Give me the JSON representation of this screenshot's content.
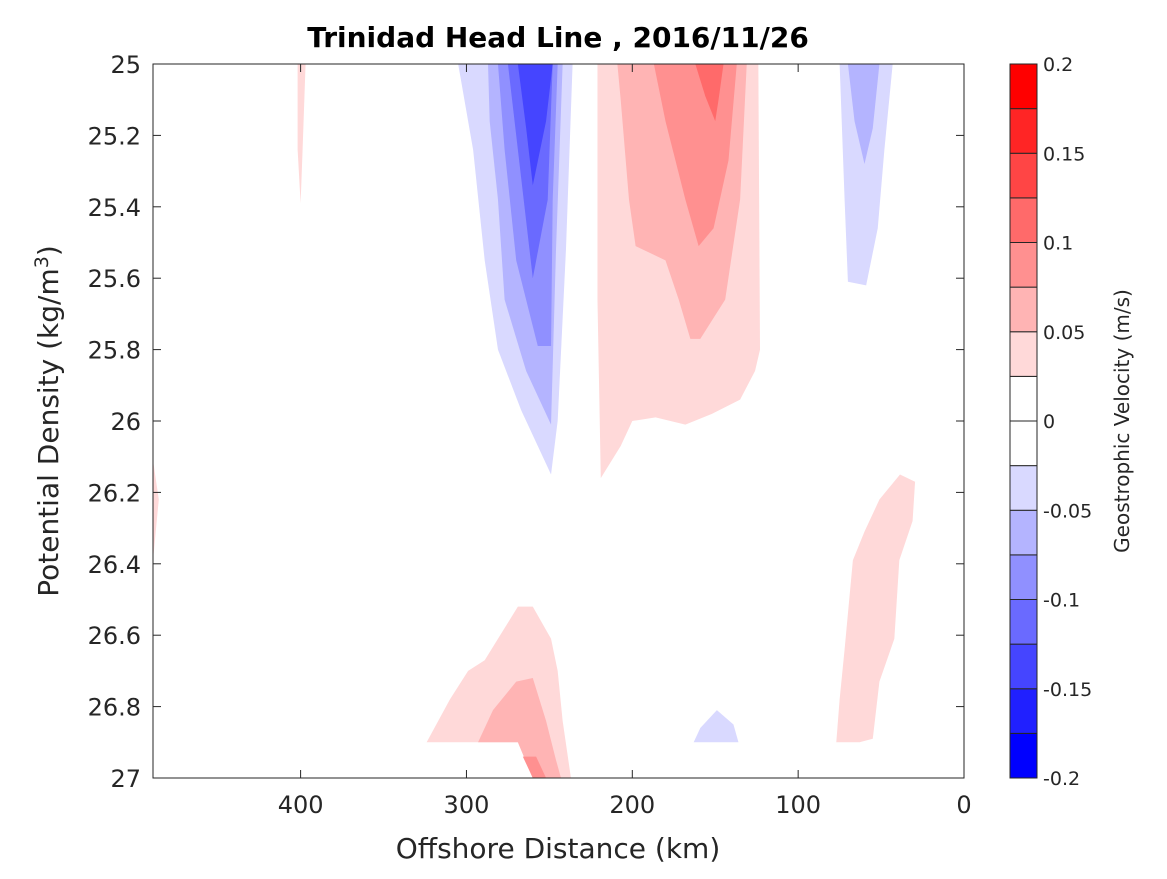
{
  "chart_data": {
    "type": "filled-contour",
    "title": "Trinidad Head Line , 2016/11/26",
    "xlabel": "Offshore Distance (km)",
    "ylabel": "Potential Density (kg/m",
    "ylabel_sup": "3",
    "ylabel_close": ")",
    "xlim": [
      489,
      0
    ],
    "ylim": [
      25,
      27
    ],
    "y_reversed": true,
    "x_reversed": true,
    "xticks": [
      400,
      300,
      200,
      100,
      0
    ],
    "yticks": [
      25,
      25.2,
      25.4,
      25.6,
      25.8,
      26,
      26.2,
      26.4,
      26.6,
      26.8,
      27
    ],
    "colorbar": {
      "label": "Geostrophic Velocity (m/s)",
      "range": [
        -0.2,
        0.2
      ],
      "levels": [
        -0.2,
        -0.175,
        -0.15,
        -0.125,
        -0.1,
        -0.075,
        -0.05,
        -0.025,
        0,
        0.025,
        0.05,
        0.075,
        0.1,
        0.125,
        0.15,
        0.175,
        0.2
      ],
      "colors": [
        "#0000ff",
        "#2020ff",
        "#4545ff",
        "#6a6aff",
        "#9090ff",
        "#b4b4ff",
        "#d9d9ff",
        "#ffffff",
        "#ffffff",
        "#ffd9d9",
        "#ffb4b4",
        "#ff9090",
        "#ff6a6a",
        "#ff4545",
        "#ff2525",
        "#ff0000"
      ],
      "ticks": [
        -0.2,
        -0.15,
        -0.1,
        -0.05,
        0,
        0.05,
        0.1,
        0.15,
        0.2
      ]
    },
    "regions": [
      {
        "level": -0.025,
        "points": [
          [
            324,
            25
          ],
          [
            233,
            25
          ],
          [
            234,
            25.38
          ],
          [
            239,
            26.17
          ],
          [
            242,
            26.25
          ],
          [
            249,
            26.32
          ],
          [
            269,
            26.19
          ],
          [
            289,
            26.18
          ],
          [
            298,
            25.94
          ],
          [
            307,
            25.66
          ],
          [
            319,
            25.49
          ]
        ]
      },
      {
        "level": -0.05,
        "points": [
          [
            305,
            25
          ],
          [
            236,
            25
          ],
          [
            240,
            25.52
          ],
          [
            245,
            26.0
          ],
          [
            249,
            26.15
          ],
          [
            267,
            25.97
          ],
          [
            281,
            25.8
          ],
          [
            289,
            25.55
          ],
          [
            296,
            25.24
          ]
        ]
      },
      {
        "level": -0.075,
        "points": [
          [
            287,
            25
          ],
          [
            242,
            25
          ],
          [
            246,
            25.52
          ],
          [
            249,
            26.01
          ],
          [
            264,
            25.86
          ],
          [
            277,
            25.66
          ],
          [
            281,
            25.38
          ],
          [
            286,
            25.16
          ]
        ]
      },
      {
        "level": -0.1,
        "points": [
          [
            281,
            25
          ],
          [
            245,
            25
          ],
          [
            248,
            25.38
          ],
          [
            249,
            25.79
          ],
          [
            257,
            25.79
          ],
          [
            270,
            25.55
          ],
          [
            277,
            25.24
          ]
        ]
      },
      {
        "level": -0.125,
        "points": [
          [
            275,
            25
          ],
          [
            248,
            25
          ],
          [
            251,
            25.38
          ],
          [
            260,
            25.6
          ],
          [
            267,
            25.32
          ]
        ]
      },
      {
        "level": -0.15,
        "points": [
          [
            269,
            25
          ],
          [
            248,
            25
          ],
          [
            252,
            25.16
          ],
          [
            260,
            25.34
          ],
          [
            264,
            25.18
          ]
        ]
      },
      {
        "level": -0.025,
        "points": [
          [
            435.5,
            25
          ],
          [
            427.7,
            25
          ],
          [
            428.3,
            25.38
          ],
          [
            429.5,
            25.55
          ],
          [
            433.7,
            25.44
          ],
          [
            436.1,
            25.3
          ]
        ]
      },
      {
        "level": 0.025,
        "points": [
          [
            401.8,
            25
          ],
          [
            397,
            25
          ],
          [
            398.8,
            25.24
          ],
          [
            400,
            25.39
          ],
          [
            401.8,
            25.24
          ]
        ]
      },
      {
        "level": 0.025,
        "points": [
          [
            221,
            25
          ],
          [
            124,
            25
          ],
          [
            123,
            25.8
          ],
          [
            126,
            25.86
          ],
          [
            135,
            25.94
          ],
          [
            152,
            25.98
          ],
          [
            168,
            26.01
          ],
          [
            186,
            25.99
          ],
          [
            200,
            26.0
          ],
          [
            207,
            26.07
          ],
          [
            219,
            26.16
          ],
          [
            221,
            25.66
          ]
        ]
      },
      {
        "level": 0.05,
        "points": [
          [
            209,
            25
          ],
          [
            131,
            25
          ],
          [
            135,
            25.38
          ],
          [
            144,
            25.66
          ],
          [
            159,
            25.77
          ],
          [
            165,
            25.77
          ],
          [
            172,
            25.66
          ],
          [
            180,
            25.55
          ],
          [
            198,
            25.51
          ],
          [
            202,
            25.38
          ],
          [
            207,
            25.1
          ]
        ]
      },
      {
        "level": 0.075,
        "points": [
          [
            187,
            25
          ],
          [
            137,
            25
          ],
          [
            142,
            25.27
          ],
          [
            151,
            25.46
          ],
          [
            160,
            25.51
          ],
          [
            168,
            25.38
          ],
          [
            180,
            25.16
          ]
        ]
      },
      {
        "level": 0.1,
        "points": [
          [
            162,
            25
          ],
          [
            145,
            25
          ],
          [
            148,
            25.1
          ],
          [
            150,
            25.16
          ],
          [
            156,
            25.09
          ]
        ]
      },
      {
        "level": -0.025,
        "points": [
          [
            79,
            25
          ],
          [
            34,
            25
          ],
          [
            42,
            25.24
          ],
          [
            46,
            25.58
          ],
          [
            51,
            25.77
          ],
          [
            63,
            25.89
          ],
          [
            70,
            25.97
          ],
          [
            76,
            25.89
          ],
          [
            81,
            25.38
          ]
        ]
      },
      {
        "level": -0.05,
        "points": [
          [
            75,
            25
          ],
          [
            43,
            25
          ],
          [
            48,
            25.24
          ],
          [
            52,
            25.46
          ],
          [
            59,
            25.62
          ],
          [
            70,
            25.61
          ],
          [
            72,
            25.38
          ]
        ]
      },
      {
        "level": -0.075,
        "points": [
          [
            70,
            25
          ],
          [
            51,
            25
          ],
          [
            55,
            25.18
          ],
          [
            60,
            25.28
          ],
          [
            66,
            25.16
          ]
        ]
      },
      {
        "level": 0.025,
        "points": [
          [
            38.6,
            26.15
          ],
          [
            29.5,
            26.17
          ],
          [
            31,
            26.28
          ],
          [
            39,
            26.39
          ],
          [
            42,
            26.61
          ],
          [
            51,
            26.73
          ],
          [
            55,
            26.89
          ],
          [
            63,
            26.9
          ],
          [
            77,
            26.9
          ],
          [
            75,
            26.78
          ],
          [
            72,
            26.64
          ],
          [
            67,
            26.39
          ],
          [
            60,
            26.31
          ],
          [
            51,
            26.22
          ]
        ]
      },
      {
        "level": 0.025,
        "points": [
          [
            489,
            26.11
          ],
          [
            485.5,
            26.22
          ],
          [
            489,
            26.39
          ]
        ]
      },
      {
        "level": 0.025,
        "points": [
          [
            324,
            26.9
          ],
          [
            310,
            26.78
          ],
          [
            299,
            26.7
          ],
          [
            289,
            26.67
          ],
          [
            269,
            26.52
          ],
          [
            260,
            26.52
          ],
          [
            249,
            26.61
          ],
          [
            245,
            26.7
          ],
          [
            242,
            26.84
          ],
          [
            237,
            27
          ],
          [
            260,
            27
          ],
          [
            269,
            26.9
          ]
        ]
      },
      {
        "level": 0.05,
        "points": [
          [
            293,
            26.9
          ],
          [
            284,
            26.81
          ],
          [
            270,
            26.73
          ],
          [
            260,
            26.72
          ],
          [
            252,
            26.84
          ],
          [
            246,
            26.95
          ],
          [
            243,
            27
          ],
          [
            260,
            27
          ],
          [
            269,
            26.9
          ]
        ]
      },
      {
        "level": 0.075,
        "points": [
          [
            266,
            26.94
          ],
          [
            258,
            26.94
          ],
          [
            252,
            27
          ],
          [
            260,
            27
          ]
        ]
      },
      {
        "level": -0.025,
        "points": [
          [
            195,
            27
          ],
          [
            183,
            26.89
          ],
          [
            174,
            26.75
          ],
          [
            165,
            26.67
          ],
          [
            156,
            26.59
          ],
          [
            149,
            26.55
          ],
          [
            142,
            26.6
          ],
          [
            132,
            26.75
          ],
          [
            122,
            26.9
          ],
          [
            169,
            26.9
          ],
          [
            179,
            27
          ]
        ]
      },
      {
        "level": -0.05,
        "points": [
          [
            163,
            26.9
          ],
          [
            159,
            26.86
          ],
          [
            149,
            26.81
          ],
          [
            139,
            26.85
          ],
          [
            136,
            26.9
          ]
        ]
      }
    ]
  }
}
